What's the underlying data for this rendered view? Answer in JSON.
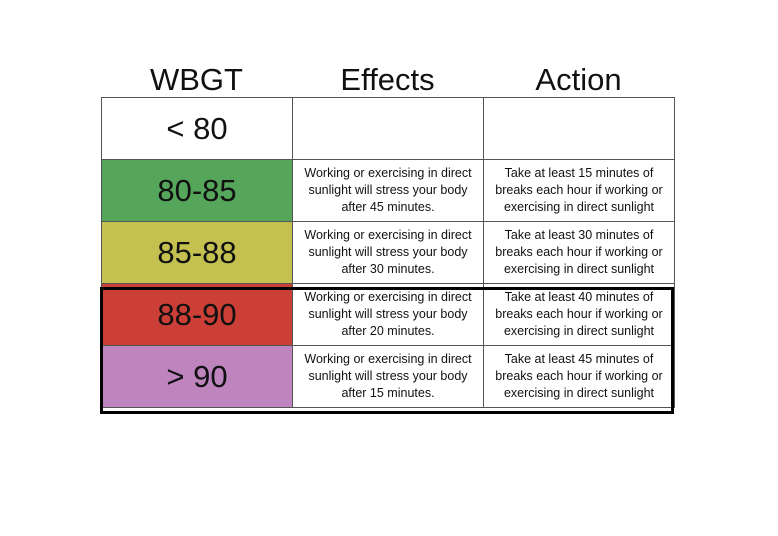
{
  "headers": {
    "wbgt": "WBGT",
    "effects": "Effects",
    "action": "Action"
  },
  "rows": [
    {
      "range": "< 80",
      "effect": "",
      "action": "",
      "color": "#ffffff"
    },
    {
      "range": "80-85",
      "effect": "Working or exercising in direct sunlight will stress your body after 45 minutes.",
      "action": "Take at least 15 minutes of breaks each hour if working or exercising in direct sunlight",
      "color": "#55a55a"
    },
    {
      "range": "85-88",
      "effect": "Working or exercising in direct sunlight will stress your body after 30 minutes.",
      "action": "Take at least 30 minutes of breaks each hour if working or exercising in direct sunlight",
      "color": "#c4c150"
    },
    {
      "range": "88-90",
      "effect": "Working or exercising in direct sunlight will stress your body after 20 minutes.",
      "action": "Take at least 40 minutes of breaks each hour if working or exercising in direct sunlight",
      "color": "#cc3f36"
    },
    {
      "range": "> 90",
      "effect": "Working or exercising in direct sunlight will stress your body after 15 minutes.",
      "action": "Take at least 45 minutes of breaks each hour if working or exercising in direct sunlight",
      "color": "#be84be"
    }
  ]
}
